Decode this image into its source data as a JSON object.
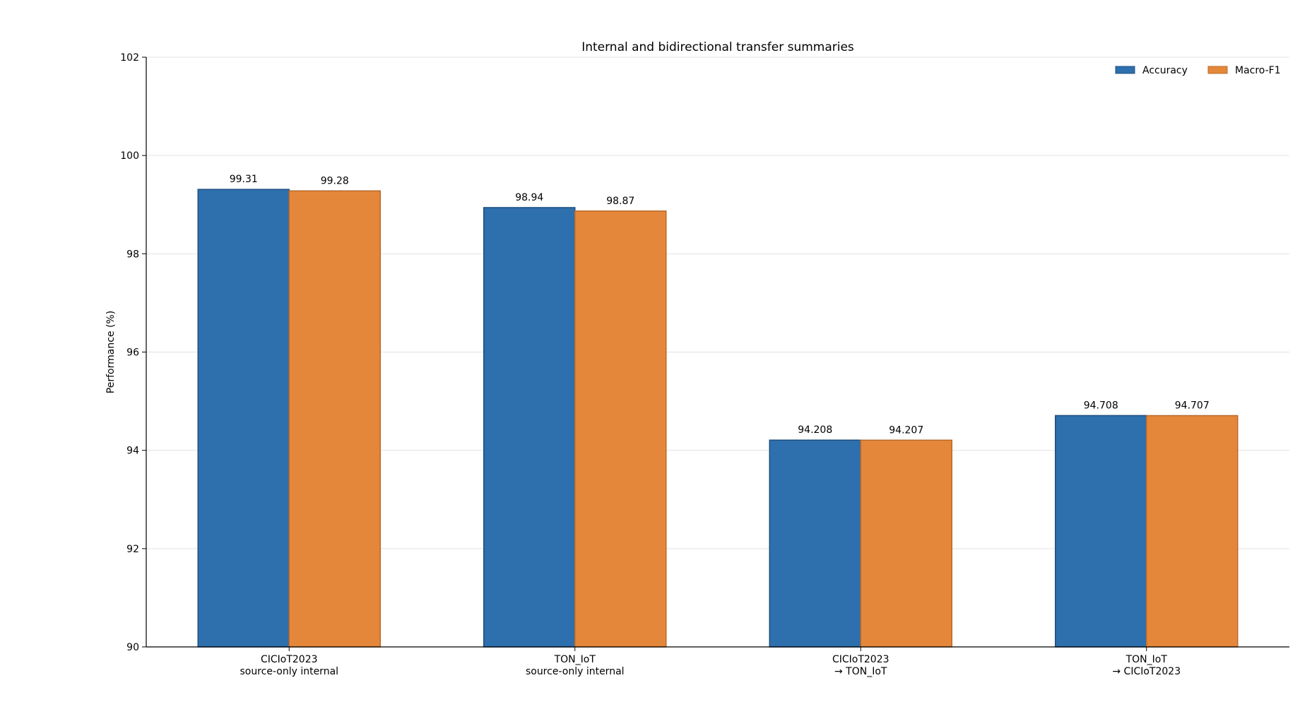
{
  "chart_data": {
    "type": "bar",
    "title": "Internal and bidirectional transfer summaries",
    "xlabel": "",
    "ylabel": "Performance (%)",
    "ylim": [
      90,
      102
    ],
    "yticks": [
      90,
      92,
      94,
      96,
      98,
      100,
      102
    ],
    "grid": "y",
    "legend_position": "top-right",
    "categories": [
      [
        "CICIoT2023",
        "source-only internal"
      ],
      [
        "TON_IoT",
        "source-only internal"
      ],
      [
        "CICIoT2023",
        "→ TON_IoT"
      ],
      [
        "TON_IoT",
        "→ CICIoT2023"
      ]
    ],
    "series": [
      {
        "name": "Accuracy",
        "color": "#2e6fad",
        "values": [
          99.31,
          98.94,
          94.208,
          94.708
        ],
        "labels": [
          "99.31",
          "98.94",
          "94.208",
          "94.708"
        ]
      },
      {
        "name": "Macro-F1",
        "color": "#e5873a",
        "values": [
          99.28,
          98.87,
          94.207,
          94.707
        ],
        "labels": [
          "99.28",
          "98.87",
          "94.207",
          "94.707"
        ]
      }
    ]
  }
}
